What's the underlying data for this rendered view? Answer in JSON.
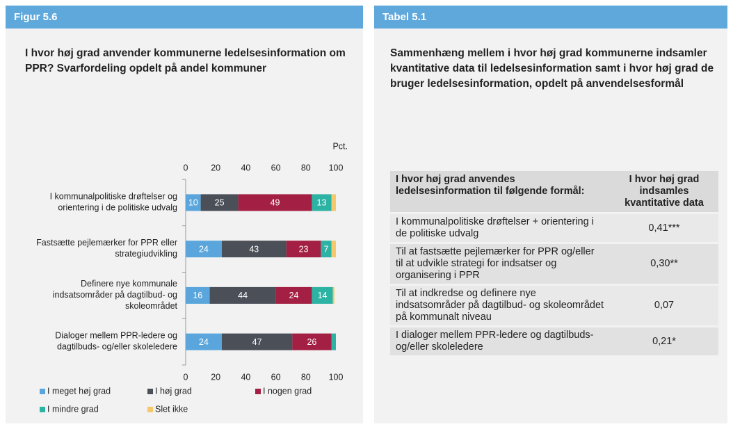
{
  "figure": {
    "label": "Figur 5.6",
    "title": "I hvor høj grad anvender kommunerne ledelsesinformation om PPR? Svarfordeling opdelt på andel kommuner"
  },
  "chart_data": {
    "type": "stacked-bar-horizontal",
    "unit_label": "Pct.",
    "categories": [
      "I kommunalpolitiske drøftelser og orientering i de politiske udvalg",
      "Fastsætte pejlemærker for PPR eller strategiudvikling",
      "Definere nye kommunale indsatsområder på dagtilbud- og skoleområdet",
      "Dialoger mellem PPR-ledere og dagtilbuds- og/eller skoleledere"
    ],
    "series": [
      {
        "name": "I meget høj grad",
        "color": "#5aa6dc",
        "values": [
          10,
          24,
          16,
          24
        ]
      },
      {
        "name": "I høj grad",
        "color": "#4b4f58",
        "values": [
          25,
          43,
          44,
          47
        ]
      },
      {
        "name": "I nogen grad",
        "color": "#a31f43",
        "values": [
          49,
          23,
          24,
          26
        ]
      },
      {
        "name": "I mindre grad",
        "color": "#2db3a3",
        "values": [
          13,
          7,
          14,
          3
        ]
      },
      {
        "name": "Slet ikke",
        "color": "#f5c86b",
        "values": [
          3,
          3,
          1,
          0
        ]
      }
    ],
    "xlim": [
      0,
      100
    ],
    "xticks": [
      0,
      20,
      40,
      60,
      80,
      100
    ]
  },
  "table_panel": {
    "label": "Tabel 5.1",
    "title": "Sammenhæng mellem i hvor høj grad kommunerne indsamler kvantitative data til ledelsesinformation samt i hvor høj grad de bruger ledelsesinformation, opdelt på anvendelsesformål",
    "table": {
      "header": [
        "I hvor høj grad anvendes ledelsesinformation til følgende formål:",
        "I hvor høj grad indsamles kvantitative data"
      ],
      "rows": [
        [
          "I kommunalpolitiske drøftelser + orientering i de politiske udvalg",
          "0,41***"
        ],
        [
          "Til at fastsætte pejlemærker for PPR og/eller til at udvikle strategi for indsatser og organisering i PPR",
          "0,30**"
        ],
        [
          "Til at indkredse og definere nye indsatsområder på dagtilbud- og skoleområdet på kommunalt niveau",
          "0,07"
        ],
        [
          "I dialoger mellem PPR-ledere og dagtilbuds- og/eller skoleledere",
          "0,21*"
        ]
      ]
    }
  }
}
